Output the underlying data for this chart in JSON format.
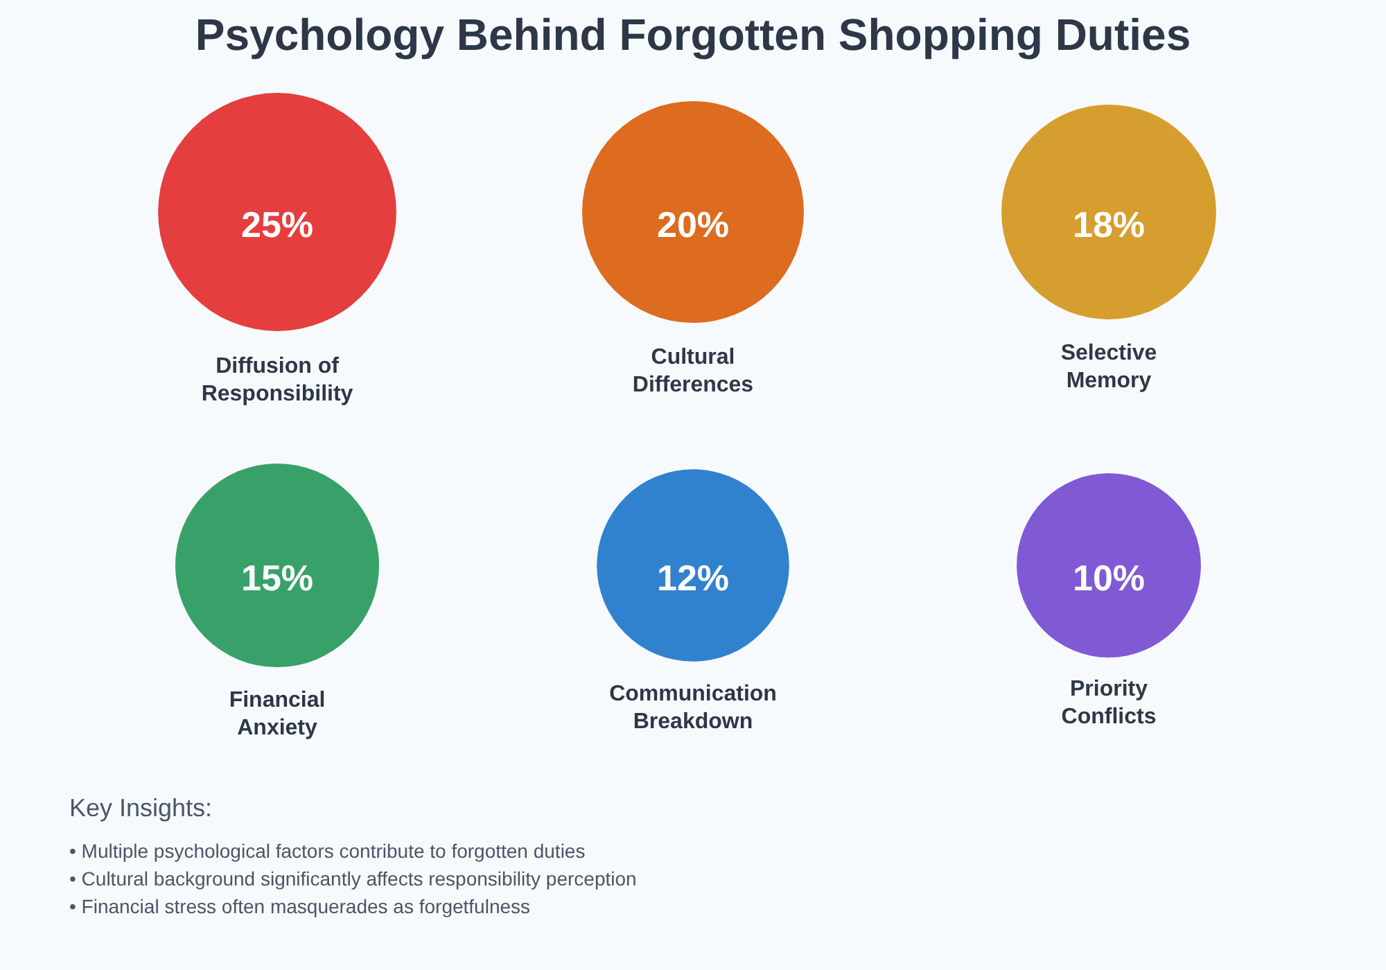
{
  "chart_data": {
    "type": "other",
    "title": "Psychology Behind Forgotten Shopping Duties",
    "categories": [
      "Diffusion of Responsibility",
      "Cultural Differences",
      "Selective Memory",
      "Financial Anxiety",
      "Communication Breakdown",
      "Priority Conflicts"
    ],
    "values": [
      25,
      20,
      18,
      15,
      12,
      10
    ],
    "value_labels": [
      "25%",
      "20%",
      "18%",
      "15%",
      "12%",
      "10%"
    ],
    "colors": [
      "#e53e3e",
      "#dd6b20",
      "#d69e2e",
      "#38a169",
      "#3182ce",
      "#805ad5"
    ],
    "annotations": [
      "Key Insights:",
      "• Multiple psychological factors contribute to forgotten duties",
      "• Cultural background significantly affects responsibility perception",
      "• Financial stress often masquerades as forgetfulness"
    ]
  }
}
